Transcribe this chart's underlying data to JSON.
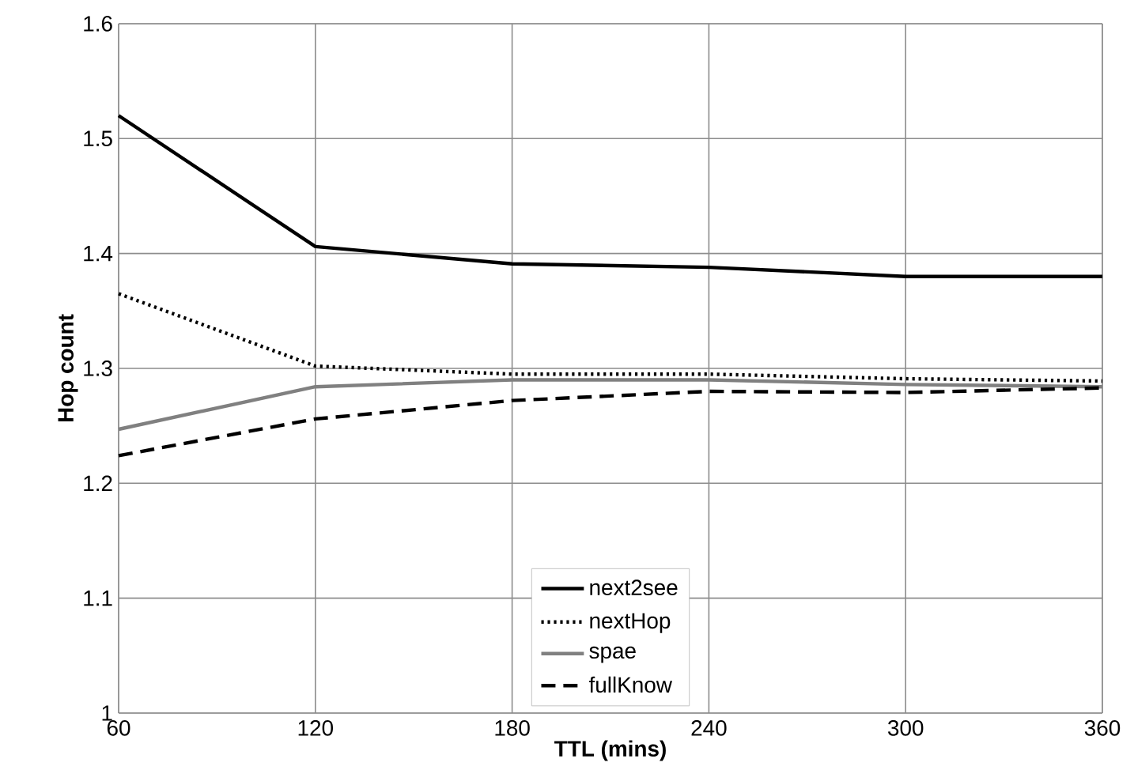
{
  "chart_data": {
    "type": "line",
    "xlabel": "TTL (mins)",
    "ylabel": "Hop count",
    "x": [
      60,
      120,
      180,
      240,
      300,
      360
    ],
    "xlim": [
      60,
      360
    ],
    "xticks": [
      60,
      120,
      180,
      240,
      300,
      360
    ],
    "ylim": [
      1,
      1.6
    ],
    "yticks": [
      1,
      1.1,
      1.2,
      1.3,
      1.4,
      1.5,
      1.6
    ],
    "grid": true,
    "legend": "bottom",
    "marker": "none",
    "series": [
      {
        "name": "next2see",
        "color": "#000000",
        "line_style": "solid",
        "values": [
          1.52,
          1.406,
          1.391,
          1.388,
          1.38,
          1.38
        ]
      },
      {
        "name": "nextHop",
        "color": "#000000",
        "line_style": "dotted",
        "values": [
          1.365,
          1.302,
          1.295,
          1.295,
          1.291,
          1.289
        ]
      },
      {
        "name": "spae",
        "color": "#808080",
        "line_style": "solid",
        "values": [
          1.247,
          1.284,
          1.29,
          1.29,
          1.286,
          1.284
        ]
      },
      {
        "name": "fullKnow",
        "color": "#000000",
        "line_style": "dashed",
        "values": [
          1.224,
          1.256,
          1.272,
          1.28,
          1.279,
          1.283
        ]
      }
    ]
  }
}
